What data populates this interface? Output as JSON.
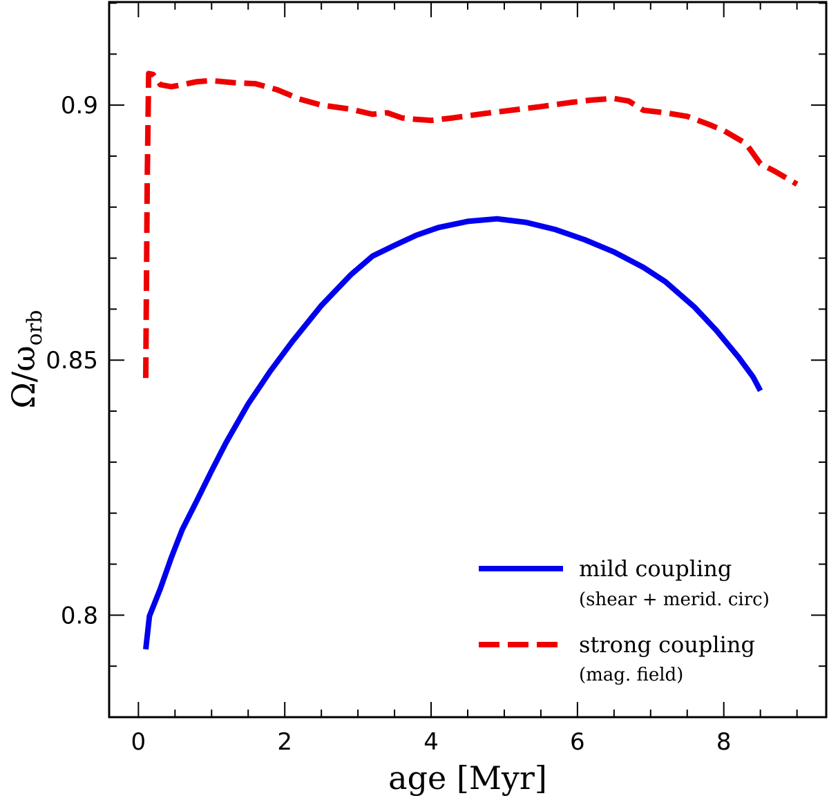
{
  "chart_data": {
    "type": "line",
    "title": "",
    "xlabel": "age [Myr]",
    "ylabel": "Ω/ω",
    "ylabel_sub": "orb",
    "xlim": [
      -0.4,
      9.4
    ],
    "ylim": [
      0.78,
      0.9202
    ],
    "xticks": [
      0,
      2,
      4,
      6,
      8
    ],
    "xtick_labels": [
      "0",
      "2",
      "4",
      "6",
      "8"
    ],
    "yticks": [
      0.8,
      0.85,
      0.9
    ],
    "ytick_labels": [
      "0.8",
      "0.85",
      "0.9"
    ],
    "grid": false,
    "legend_position": "bottom-right",
    "series": [
      {
        "name": "mild coupling",
        "subtitle": "(shear + merid. circ)",
        "color": "#0000ee",
        "style": "solid",
        "x": [
          0.1,
          0.15,
          0.3,
          0.45,
          0.6,
          0.8,
          1.0,
          1.2,
          1.5,
          1.8,
          2.1,
          2.5,
          2.9,
          3.2,
          3.5,
          3.8,
          4.1,
          4.5,
          4.9,
          5.3,
          5.7,
          6.1,
          6.5,
          6.9,
          7.2,
          7.6,
          7.9,
          8.2,
          8.4,
          8.5
        ],
        "values": [
          0.7933,
          0.7998,
          0.8052,
          0.8113,
          0.8168,
          0.8225,
          0.8283,
          0.8339,
          0.8414,
          0.8478,
          0.8536,
          0.8607,
          0.8667,
          0.8704,
          0.8725,
          0.8745,
          0.876,
          0.8772,
          0.8777,
          0.877,
          0.8756,
          0.8736,
          0.8712,
          0.8682,
          0.8654,
          0.8604,
          0.8558,
          0.8506,
          0.8467,
          0.844
        ]
      },
      {
        "name": "strong coupling",
        "subtitle": "(mag. field)",
        "color": "#ee0000",
        "style": "dashed",
        "x": [
          0.1,
          0.12,
          0.14,
          0.2,
          0.3,
          0.45,
          0.6,
          0.8,
          1.0,
          1.3,
          1.6,
          1.9,
          2.2,
          2.5,
          2.9,
          3.2,
          3.4,
          3.6,
          3.8,
          4.0,
          4.3,
          4.7,
          5.1,
          5.5,
          5.9,
          6.2,
          6.5,
          6.7,
          6.9,
          7.2,
          7.5,
          7.8,
          8.0,
          8.3,
          8.5,
          8.7,
          9.0
        ],
        "values": [
          0.8465,
          0.885,
          0.9062,
          0.906,
          0.904,
          0.9036,
          0.904,
          0.9046,
          0.9048,
          0.9044,
          0.9042,
          0.903,
          0.9012,
          0.9,
          0.8992,
          0.8982,
          0.8985,
          0.8975,
          0.8972,
          0.897,
          0.8975,
          0.8983,
          0.899,
          0.8997,
          0.9005,
          0.901,
          0.9013,
          0.9008,
          0.899,
          0.8985,
          0.8978,
          0.8962,
          0.895,
          0.8925,
          0.8885,
          0.887,
          0.8845
        ]
      }
    ]
  }
}
